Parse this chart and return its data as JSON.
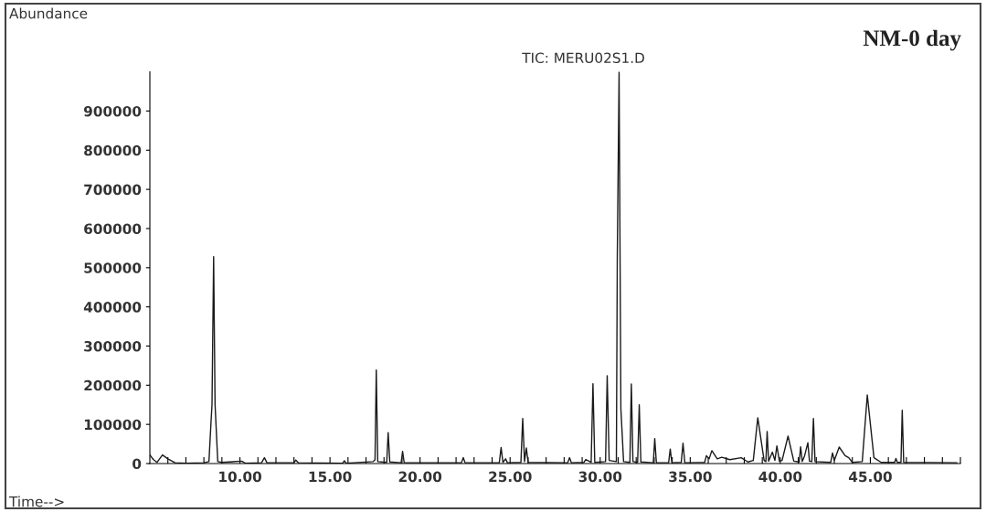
{
  "chart_data": {
    "type": "line",
    "title": "TIC: MERU02S1.D",
    "xlabel": "Time-->",
    "ylabel": "Abundance",
    "annotations": [
      "NM-0 day"
    ],
    "xlim": [
      5,
      50
    ],
    "ylim": [
      0,
      1000000
    ],
    "xticks": [
      {
        "value": 6,
        "label": null
      },
      {
        "value": 7,
        "label": null
      },
      {
        "value": 8,
        "label": null
      },
      {
        "value": 9,
        "label": null
      },
      {
        "value": 10,
        "label": "10.00"
      },
      {
        "value": 11,
        "label": null
      },
      {
        "value": 12,
        "label": null
      },
      {
        "value": 13,
        "label": null
      },
      {
        "value": 14,
        "label": null
      },
      {
        "value": 15,
        "label": "15.00"
      },
      {
        "value": 16,
        "label": null
      },
      {
        "value": 17,
        "label": null
      },
      {
        "value": 18,
        "label": null
      },
      {
        "value": 19,
        "label": null
      },
      {
        "value": 20,
        "label": "20.00"
      },
      {
        "value": 21,
        "label": null
      },
      {
        "value": 22,
        "label": null
      },
      {
        "value": 23,
        "label": null
      },
      {
        "value": 24,
        "label": null
      },
      {
        "value": 25,
        "label": "25.00"
      },
      {
        "value": 26,
        "label": null
      },
      {
        "value": 27,
        "label": null
      },
      {
        "value": 28,
        "label": null
      },
      {
        "value": 29,
        "label": null
      },
      {
        "value": 30,
        "label": "30.00"
      },
      {
        "value": 31,
        "label": null
      },
      {
        "value": 32,
        "label": null
      },
      {
        "value": 33,
        "label": null
      },
      {
        "value": 34,
        "label": null
      },
      {
        "value": 35,
        "label": "35.00"
      },
      {
        "value": 36,
        "label": null
      },
      {
        "value": 37,
        "label": null
      },
      {
        "value": 38,
        "label": null
      },
      {
        "value": 39,
        "label": null
      },
      {
        "value": 40,
        "label": "40.00"
      },
      {
        "value": 41,
        "label": null
      },
      {
        "value": 42,
        "label": null
      },
      {
        "value": 43,
        "label": null
      },
      {
        "value": 44,
        "label": null
      },
      {
        "value": 45,
        "label": "45.00"
      },
      {
        "value": 46,
        "label": null
      },
      {
        "value": 47,
        "label": null
      },
      {
        "value": 48,
        "label": null
      },
      {
        "value": 49,
        "label": null
      },
      {
        "value": 50,
        "label": null
      }
    ],
    "yticks": [
      0,
      100000,
      200000,
      300000,
      400000,
      500000,
      600000,
      700000,
      800000,
      900000
    ],
    "grid": false,
    "legend": false,
    "marker": "none",
    "line_style": "solid",
    "series": [
      {
        "color": "#1a1a1a",
        "x": [
          5.0,
          5.2,
          5.4,
          5.7,
          6.0,
          6.4,
          7.0,
          8.0,
          8.28,
          8.4,
          8.45,
          8.54,
          8.62,
          8.77,
          9.0,
          10.1,
          10.3,
          11.2,
          11.36,
          11.5,
          13.0,
          13.1,
          13.25,
          15.7,
          15.8,
          15.9,
          17.4,
          17.5,
          17.57,
          17.65,
          18.15,
          18.23,
          18.32,
          18.95,
          19.03,
          19.12,
          22.3,
          22.4,
          22.5,
          24.4,
          24.5,
          24.6,
          24.75,
          24.85,
          25.6,
          25.7,
          25.8,
          25.9,
          26.0,
          28.2,
          28.3,
          28.4,
          29.1,
          29.2,
          29.5,
          29.6,
          29.7,
          30.3,
          30.39,
          30.5,
          30.9,
          30.95,
          31.05,
          31.15,
          31.3,
          31.65,
          31.73,
          31.82,
          32.08,
          32.17,
          32.26,
          32.95,
          33.03,
          33.12,
          33.8,
          33.89,
          33.98,
          34.5,
          34.6,
          34.7,
          35.8,
          35.9,
          36.05,
          36.2,
          36.5,
          36.75,
          37.2,
          37.83,
          38.2,
          38.5,
          38.75,
          39.1,
          39.2,
          39.27,
          39.35,
          39.56,
          39.7,
          39.81,
          39.95,
          40.1,
          40.43,
          40.75,
          41.05,
          41.13,
          41.22,
          41.35,
          41.53,
          41.62,
          41.75,
          41.84,
          41.93,
          42.8,
          42.9,
          43.0,
          43.27,
          43.6,
          43.8,
          44.0,
          44.55,
          44.83,
          45.2,
          45.6,
          46.35,
          46.42,
          46.5,
          46.7,
          46.77,
          46.85,
          49.8
        ],
        "values": [
          22000,
          10000,
          3000,
          22000,
          12000,
          2000,
          1000,
          2000,
          5000,
          110000,
          150000,
          528000,
          150000,
          5000,
          3000,
          6000,
          1000,
          2000,
          15000,
          2000,
          2000,
          9000,
          2000,
          1000,
          7000,
          1000,
          5000,
          10000,
          239000,
          5000,
          3000,
          79000,
          4000,
          2000,
          31000,
          2000,
          2000,
          15000,
          2000,
          2000,
          41000,
          3000,
          12000,
          2000,
          3000,
          115000,
          5000,
          40000,
          3000,
          2000,
          15000,
          2000,
          3000,
          10000,
          3000,
          204000,
          3000,
          5000,
          224000,
          8000,
          5000,
          525000,
          1000000,
          140000,
          5000,
          3000,
          203000,
          5000,
          3000,
          150000,
          4000,
          2000,
          64000,
          2000,
          2000,
          37000,
          2000,
          3000,
          52000,
          2000,
          3000,
          20000,
          12000,
          33000,
          12000,
          16000,
          10000,
          15000,
          4000,
          8000,
          117000,
          8000,
          5000,
          82000,
          6000,
          29000,
          8000,
          45000,
          6000,
          8000,
          70000,
          6000,
          4000,
          43000,
          5000,
          20000,
          53000,
          6000,
          5000,
          115000,
          5000,
          3000,
          27000,
          8000,
          42000,
          20000,
          15000,
          3000,
          5000,
          175000,
          15000,
          3000,
          3000,
          13000,
          3000,
          3000,
          136000,
          3000,
          2000
        ]
      }
    ]
  }
}
